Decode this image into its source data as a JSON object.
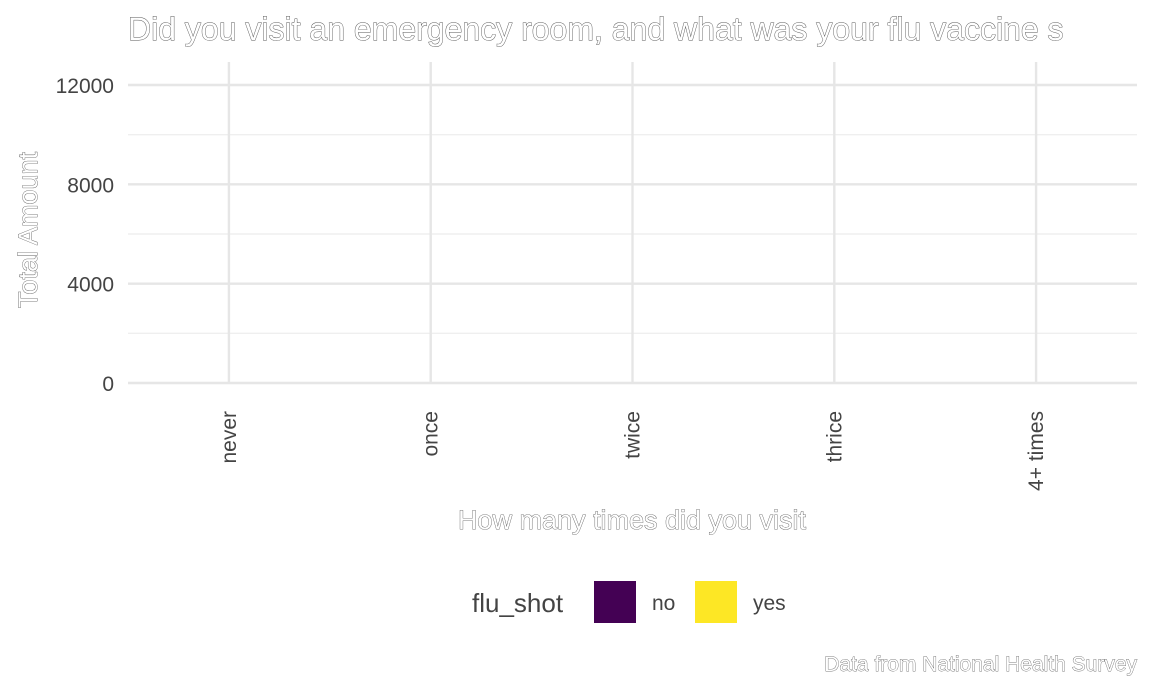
{
  "chart_data": {
    "type": "bar",
    "title": "Did you visit an emergency room, and what was your flu vaccine s",
    "xlabel": "How many times did you visit",
    "ylabel": "Total Amount",
    "caption": "Data from National Health Survey",
    "categories": [
      "never",
      "once",
      "twice",
      "thrice",
      "4+ times"
    ],
    "ylim": [
      0,
      12000
    ],
    "yticks": [
      0,
      4000,
      8000,
      12000
    ],
    "yticks_minor": [
      2000,
      6000,
      10000
    ],
    "grid": true,
    "legend": {
      "title": "flu_shot",
      "placement": "bottom",
      "entries": [
        {
          "label": "no",
          "color": "#440154"
        },
        {
          "label": "yes",
          "color": "#FDE725"
        }
      ]
    },
    "series": [
      {
        "name": "no",
        "color": "#440154",
        "values": [
          0,
          0,
          0,
          0,
          0
        ]
      },
      {
        "name": "yes",
        "color": "#FDE725",
        "values": [
          0,
          0,
          0,
          0,
          0
        ]
      }
    ]
  }
}
